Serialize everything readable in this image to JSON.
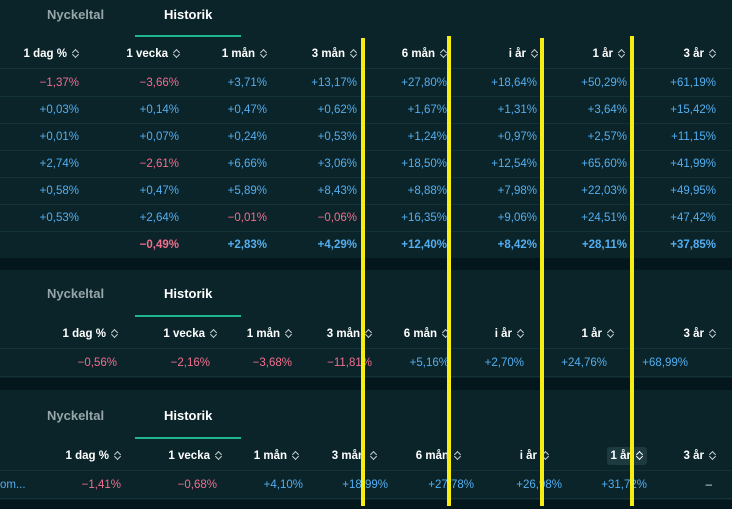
{
  "tabs": {
    "nyckeltal": "Nyckeltal",
    "historik": "Historik"
  },
  "columns": [
    "1 dag %",
    "1 vecka",
    "1 mån",
    "3 mån",
    "6 mån",
    "i år",
    "1 år",
    "3 år"
  ],
  "table1": {
    "rows": [
      [
        "−1,37%",
        "−3,66%",
        "+3,71%",
        "+13,17%",
        "+27,80%",
        "+18,64%",
        "+50,29%",
        "+61,19%"
      ],
      [
        "+0,03%",
        "+0,14%",
        "+0,47%",
        "+0,62%",
        "+1,67%",
        "+1,31%",
        "+3,64%",
        "+15,42%"
      ],
      [
        "+0,01%",
        "+0,07%",
        "+0,24%",
        "+0,53%",
        "+1,24%",
        "+0,97%",
        "+2,57%",
        "+11,15%"
      ],
      [
        "+2,74%",
        "−2,61%",
        "+6,66%",
        "+3,06%",
        "+18,50%",
        "+12,54%",
        "+65,60%",
        "+41,99%"
      ],
      [
        "+0,58%",
        "+0,47%",
        "+5,89%",
        "+8,43%",
        "+8,88%",
        "+7,98%",
        "+22,03%",
        "+49,95%"
      ],
      [
        "+0,53%",
        "+2,64%",
        "−0,01%",
        "−0,06%",
        "+16,35%",
        "+9,06%",
        "+24,51%",
        "+47,42%"
      ]
    ],
    "total": [
      "",
      "−0,49%",
      "+2,83%",
      "+4,29%",
      "+12,40%",
      "+8,42%",
      "+28,11%",
      "+37,85%"
    ]
  },
  "table2": {
    "row": [
      "−0,56%",
      "−2,16%",
      "−3,68%",
      "−11,81%",
      "+5,16%",
      "+2,70%",
      "+24,76%",
      "+68,99%"
    ]
  },
  "table3": {
    "name": "om...",
    "row": [
      "−1,41%",
      "−0,68%",
      "+4,10%",
      "+18,99%",
      "+27,78%",
      "+26,98%",
      "+31,72%",
      "–"
    ]
  },
  "colors": {
    "positive": "#53aef0",
    "negative": "#f26e8e",
    "accent": "#1fb592",
    "highlight": "#f6ee12"
  }
}
